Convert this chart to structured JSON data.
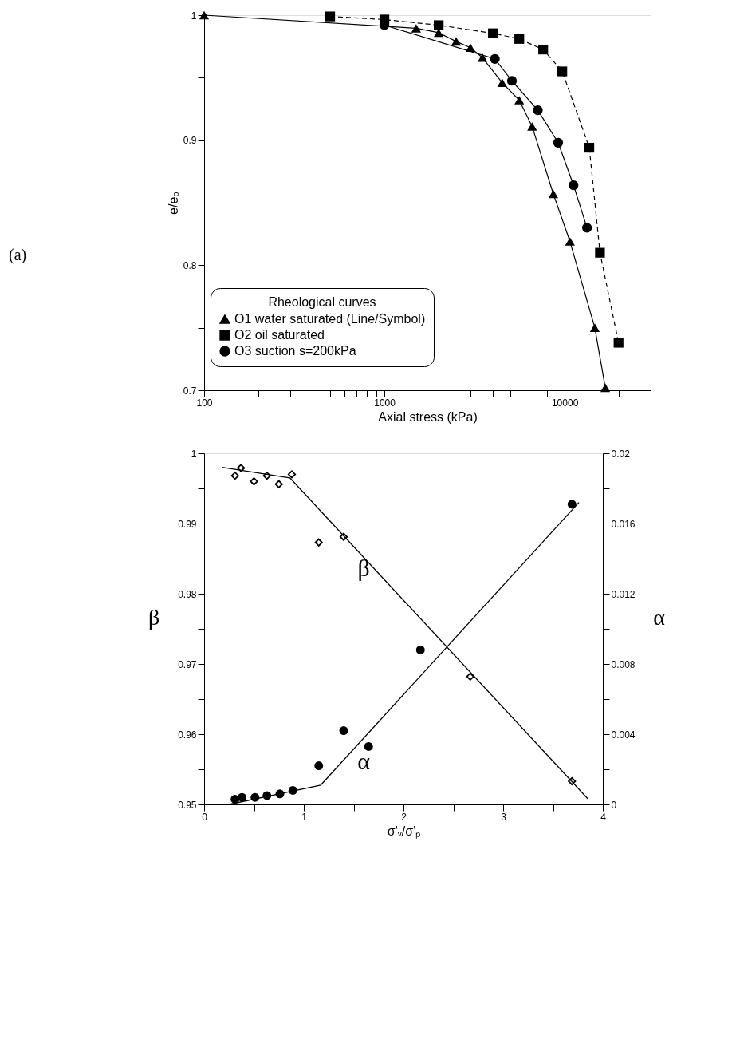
{
  "chart_data": [
    {
      "type": "line",
      "xlabel": "Axial stress (kPa)",
      "ylabel": "e/e₀",
      "legend_title": "Rheological curves",
      "legend": "bottom left",
      "log": "x",
      "xlim": [
        100,
        30000
      ],
      "xticks": [
        100,
        {
          "value": 200,
          "label": null
        },
        {
          "value": 300,
          "label": null
        },
        {
          "value": 400,
          "label": null
        },
        {
          "value": 500,
          "label": null
        },
        {
          "value": 600,
          "label": null
        },
        {
          "value": 700,
          "label": null
        },
        {
          "value": 800,
          "label": null
        },
        {
          "value": 900,
          "label": null
        },
        1000,
        {
          "value": 2000,
          "label": null
        },
        {
          "value": 3000,
          "label": null
        },
        {
          "value": 4000,
          "label": null
        },
        {
          "value": 5000,
          "label": null
        },
        {
          "value": 6000,
          "label": null
        },
        {
          "value": 7000,
          "label": null
        },
        {
          "value": 8000,
          "label": null
        },
        {
          "value": 9000,
          "label": null
        },
        10000,
        {
          "value": 20000,
          "label": null
        }
      ],
      "ylim": [
        0.7,
        1
      ],
      "yticks": [
        0.7,
        {
          "value": 0.75,
          "label": null
        },
        0.8,
        {
          "value": 0.85,
          "label": null
        },
        0.9,
        {
          "value": 0.95,
          "label": null
        },
        1
      ],
      "annotations": [
        "(a)"
      ],
      "series": [
        {
          "name": "O1 water saturated (Line/Symbol)",
          "color": "#000000",
          "marker": "triangle",
          "line_style": "solid",
          "x": [
            100,
            1500,
            2000,
            2500,
            3000,
            3500,
            4500,
            5600,
            6600,
            8650,
            10700,
            14700,
            16800
          ],
          "values": [
            1.0,
            0.9895,
            0.986,
            0.979,
            0.974,
            0.966,
            0.946,
            0.932,
            0.911,
            0.857,
            0.819,
            0.75,
            0.702
          ]
        },
        {
          "name": "O2 oil saturated",
          "color": "#000000",
          "marker": "square",
          "line_style": "dashed",
          "x": [
            500,
            1000,
            2000,
            4000,
            5600,
            7600,
            9700,
            13700,
            15700,
            19900
          ],
          "values": [
            0.999,
            0.9965,
            0.992,
            0.9855,
            0.981,
            0.9725,
            0.955,
            0.894,
            0.81,
            0.738
          ]
        },
        {
          "name": "O3 suction s=200kPa",
          "color": "#000000",
          "marker": "circle",
          "line_style": "solid",
          "x": [
            1000,
            4100,
            5100,
            7100,
            9200,
            11200,
            13300
          ],
          "values": [
            0.992,
            0.965,
            0.9475,
            0.924,
            0.898,
            0.864,
            0.83
          ]
        }
      ]
    },
    {
      "type": "scatter",
      "xlabel": "σ'ᵥ/σ'ₚ",
      "ylabel": "β",
      "y2label": "α",
      "xlim": [
        0,
        4
      ],
      "xticks": [
        0,
        {
          "value": 0.5,
          "label": null
        },
        1,
        {
          "value": 1.5,
          "label": null
        },
        2,
        {
          "value": 2.5,
          "label": null
        },
        3,
        {
          "value": 3.5,
          "label": null
        },
        4
      ],
      "ylim": [
        0.95,
        1
      ],
      "yticks": [
        0.95,
        {
          "value": 0.955,
          "label": null
        },
        0.96,
        {
          "value": 0.965,
          "label": null
        },
        0.97,
        {
          "value": 0.975,
          "label": null
        },
        0.98,
        {
          "value": 0.985,
          "label": null
        },
        0.99,
        {
          "value": 0.995,
          "label": null
        },
        1
      ],
      "y2lim": [
        0,
        0.02
      ],
      "y2ticks": [
        0,
        {
          "value": 0.002,
          "label": null
        },
        0.004,
        {
          "value": 0.006,
          "label": null
        },
        0.008,
        {
          "value": 0.01,
          "label": null
        },
        0.012,
        {
          "value": 0.014,
          "label": null
        },
        0.016,
        {
          "value": 0.018,
          "label": null
        },
        0.02
      ],
      "annotations": [
        "β",
        "α"
      ],
      "series": [
        {
          "type": "scatter",
          "color": "#000000",
          "marker": "diamond",
          "x": [
            0.31,
            0.37,
            0.5,
            0.63,
            0.75,
            0.88,
            1.15,
            1.4,
            2.67,
            3.69
          ],
          "values": [
            0.9968,
            0.9979,
            0.996,
            0.9968,
            0.9956,
            0.997,
            0.9873,
            0.9881,
            0.9682,
            0.9533
          ]
        },
        {
          "type": "line",
          "color": "#000000",
          "marker": "none",
          "x": [
            0.18,
            0.86,
            3.85
          ],
          "values": [
            0.998,
            0.9965,
            0.9508
          ]
        },
        {
          "type": "scatter",
          "axis": "y2",
          "color": "#000000",
          "marker": "circle",
          "x": [
            0.31,
            0.38,
            0.51,
            0.63,
            0.76,
            0.89,
            1.15,
            1.4,
            1.65,
            2.17,
            3.69
          ],
          "values": [
            0.0003,
            0.0004,
            0.0004,
            0.0005,
            0.0006,
            0.0008,
            0.0022,
            0.0042,
            0.0033,
            0.0088,
            0.0171
          ]
        },
        {
          "type": "line",
          "axis": "y2",
          "color": "#000000",
          "marker": "none",
          "x": [
            0.25,
            1.17,
            3.76
          ],
          "values": [
            0,
            0.0011,
            0.0172
          ]
        }
      ]
    }
  ]
}
